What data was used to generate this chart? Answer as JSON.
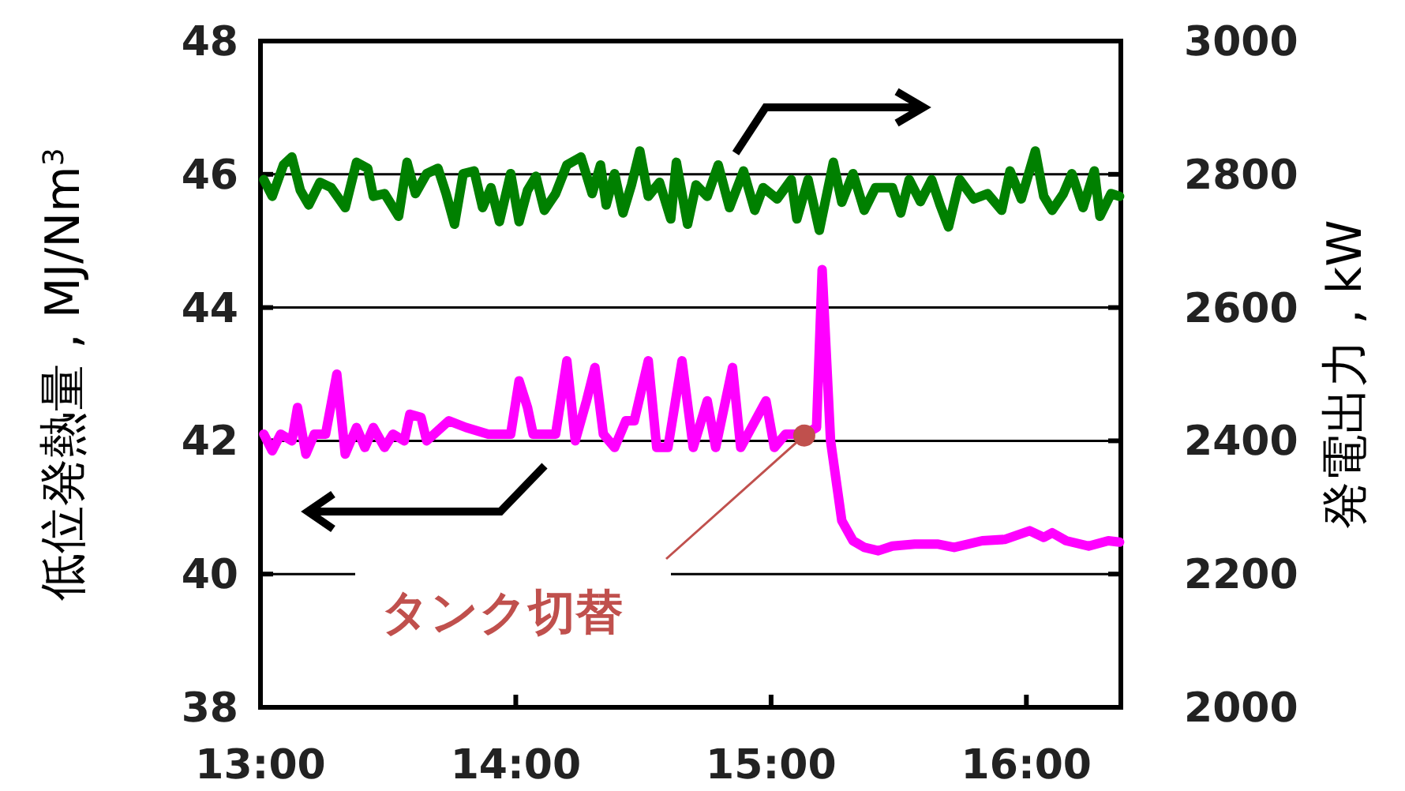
{
  "chart_data": {
    "type": "line",
    "ylabel": "低位発熱量 , MJ/Nm$^{3}$",
    "y2label": "発電出力 , kW",
    "xlim": [
      13,
      16.37
    ],
    "xticks": [
      {
        "value": 13,
        "label": "13:00"
      },
      {
        "value": 14,
        "label": "14:00"
      },
      {
        "value": 15,
        "label": "15:00"
      },
      {
        "value": 16,
        "label": "16:00"
      }
    ],
    "ylim": [
      38,
      48
    ],
    "yticks": [
      38,
      40,
      42,
      44,
      46,
      48
    ],
    "y2lim": [
      2000,
      3000
    ],
    "y2ticks": [
      2000,
      2200,
      2400,
      2600,
      2800,
      3000
    ],
    "grid": "y",
    "marker": "none",
    "line_style": "solid",
    "series": [
      {
        "color": "#ff00ff",
        "x": [
          13.013,
          13.046,
          13.079,
          13.123,
          13.145,
          13.178,
          13.211,
          13.255,
          13.299,
          13.332,
          13.376,
          13.409,
          13.442,
          13.486,
          13.519,
          13.563,
          13.585,
          13.629,
          13.651,
          13.738,
          13.805,
          13.892,
          13.98,
          14.013,
          14.046,
          14.068,
          14.156,
          14.2,
          14.233,
          14.277,
          14.31,
          14.343,
          14.387,
          14.431,
          14.464,
          14.519,
          14.552,
          14.596,
          14.651,
          14.695,
          14.75,
          14.783,
          14.849,
          14.881,
          14.98,
          15.013,
          15.057,
          15.134,
          15.178,
          15.2,
          15.233,
          15.277,
          15.321,
          15.365,
          15.42,
          15.475,
          15.563,
          15.651,
          15.717,
          15.827,
          15.915,
          16.013,
          16.068,
          16.101,
          16.156,
          16.244,
          16.321,
          16.365
        ],
        "values": [
          42.1,
          41.85,
          42.1,
          42.0,
          42.5,
          41.8,
          42.1,
          42.1,
          43.0,
          41.8,
          42.2,
          41.9,
          42.2,
          41.9,
          42.1,
          42.0,
          42.4,
          42.35,
          42.0,
          42.3,
          42.2,
          42.1,
          42.1,
          42.9,
          42.5,
          42.1,
          42.1,
          43.2,
          42.0,
          42.6,
          43.1,
          42.1,
          41.9,
          42.3,
          42.3,
          43.2,
          41.9,
          41.9,
          43.2,
          41.9,
          42.6,
          41.9,
          43.1,
          41.9,
          42.6,
          41.9,
          42.1,
          42.1,
          42.2,
          44.57,
          42.0,
          40.8,
          40.5,
          40.4,
          40.35,
          40.42,
          40.45,
          40.45,
          40.4,
          40.5,
          40.52,
          40.65,
          40.55,
          40.62,
          40.5,
          40.42,
          40.5,
          40.48
        ]
      },
      {
        "color": "#008000",
        "axis": "y2",
        "x": [
          13.013,
          13.046,
          13.09,
          13.123,
          13.156,
          13.189,
          13.233,
          13.277,
          13.332,
          13.376,
          13.42,
          13.442,
          13.486,
          13.541,
          13.574,
          13.607,
          13.651,
          13.695,
          13.727,
          13.76,
          13.794,
          13.837,
          13.87,
          13.903,
          13.936,
          13.98,
          14.013,
          14.046,
          14.079,
          14.112,
          14.156,
          14.2,
          14.255,
          14.299,
          14.332,
          14.354,
          14.387,
          14.42,
          14.453,
          14.486,
          14.519,
          14.563,
          14.607,
          14.629,
          14.673,
          14.706,
          14.75,
          14.793,
          14.837,
          14.892,
          14.936,
          14.969,
          15.024,
          15.079,
          15.101,
          15.145,
          15.189,
          15.244,
          15.277,
          15.321,
          15.365,
          15.409,
          15.475,
          15.508,
          15.541,
          15.585,
          15.629,
          15.662,
          15.695,
          15.739,
          15.794,
          15.848,
          15.903,
          15.936,
          15.98,
          16.035,
          16.068,
          16.101,
          16.145,
          16.178,
          16.222,
          16.266,
          16.288,
          16.332,
          16.365
        ],
        "values": [
          2792,
          2767,
          2814,
          2826,
          2776,
          2754,
          2788,
          2780,
          2750,
          2818,
          2809,
          2767,
          2771,
          2737,
          2818,
          2771,
          2801,
          2809,
          2771,
          2725,
          2801,
          2805,
          2750,
          2780,
          2729,
          2801,
          2729,
          2776,
          2797,
          2746,
          2771,
          2814,
          2826,
          2771,
          2814,
          2754,
          2801,
          2742,
          2784,
          2835,
          2767,
          2788,
          2733,
          2818,
          2725,
          2784,
          2767,
          2814,
          2750,
          2805,
          2746,
          2780,
          2763,
          2792,
          2733,
          2792,
          2716,
          2818,
          2758,
          2801,
          2746,
          2780,
          2780,
          2742,
          2792,
          2759,
          2792,
          2754,
          2721,
          2792,
          2763,
          2771,
          2746,
          2805,
          2763,
          2835,
          2767,
          2746,
          2771,
          2801,
          2750,
          2805,
          2737,
          2771,
          2767
        ]
      }
    ],
    "annotations": [
      {
        "text": "タンク切替",
        "x": 15.13,
        "y": 42.08
      }
    ]
  }
}
